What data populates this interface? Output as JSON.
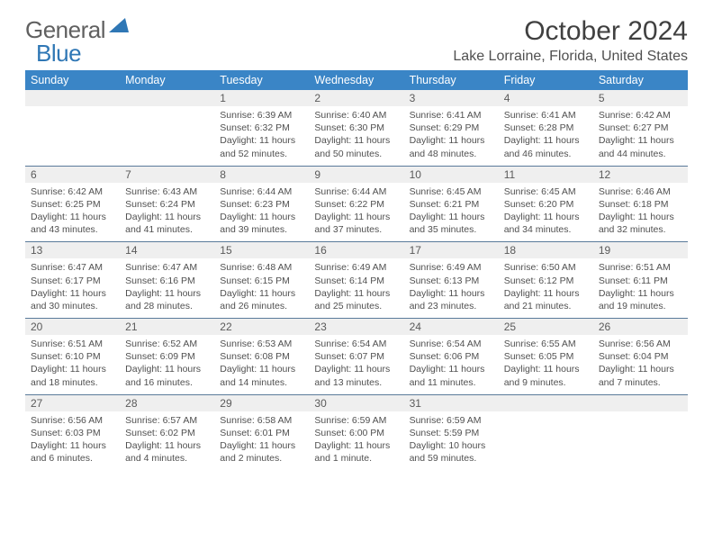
{
  "brand": {
    "text1": "General",
    "text2": "Blue"
  },
  "title": "October 2024",
  "location": "Lake Lorraine, Florida, United States",
  "colors": {
    "header_bg": "#3a85c6",
    "header_fg": "#ffffff",
    "daynum_bg": "#efefef",
    "row_sep": "#5a7a9a",
    "brand_gray": "#606060",
    "brand_blue": "#2f77b5",
    "text": "#505050"
  },
  "day_names": [
    "Sunday",
    "Monday",
    "Tuesday",
    "Wednesday",
    "Thursday",
    "Friday",
    "Saturday"
  ],
  "weeks": [
    {
      "nums": [
        "",
        "",
        "1",
        "2",
        "3",
        "4",
        "5"
      ],
      "cells": [
        "",
        "",
        "Sunrise: 6:39 AM\nSunset: 6:32 PM\nDaylight: 11 hours and 52 minutes.",
        "Sunrise: 6:40 AM\nSunset: 6:30 PM\nDaylight: 11 hours and 50 minutes.",
        "Sunrise: 6:41 AM\nSunset: 6:29 PM\nDaylight: 11 hours and 48 minutes.",
        "Sunrise: 6:41 AM\nSunset: 6:28 PM\nDaylight: 11 hours and 46 minutes.",
        "Sunrise: 6:42 AM\nSunset: 6:27 PM\nDaylight: 11 hours and 44 minutes."
      ]
    },
    {
      "nums": [
        "6",
        "7",
        "8",
        "9",
        "10",
        "11",
        "12"
      ],
      "cells": [
        "Sunrise: 6:42 AM\nSunset: 6:25 PM\nDaylight: 11 hours and 43 minutes.",
        "Sunrise: 6:43 AM\nSunset: 6:24 PM\nDaylight: 11 hours and 41 minutes.",
        "Sunrise: 6:44 AM\nSunset: 6:23 PM\nDaylight: 11 hours and 39 minutes.",
        "Sunrise: 6:44 AM\nSunset: 6:22 PM\nDaylight: 11 hours and 37 minutes.",
        "Sunrise: 6:45 AM\nSunset: 6:21 PM\nDaylight: 11 hours and 35 minutes.",
        "Sunrise: 6:45 AM\nSunset: 6:20 PM\nDaylight: 11 hours and 34 minutes.",
        "Sunrise: 6:46 AM\nSunset: 6:18 PM\nDaylight: 11 hours and 32 minutes."
      ]
    },
    {
      "nums": [
        "13",
        "14",
        "15",
        "16",
        "17",
        "18",
        "19"
      ],
      "cells": [
        "Sunrise: 6:47 AM\nSunset: 6:17 PM\nDaylight: 11 hours and 30 minutes.",
        "Sunrise: 6:47 AM\nSunset: 6:16 PM\nDaylight: 11 hours and 28 minutes.",
        "Sunrise: 6:48 AM\nSunset: 6:15 PM\nDaylight: 11 hours and 26 minutes.",
        "Sunrise: 6:49 AM\nSunset: 6:14 PM\nDaylight: 11 hours and 25 minutes.",
        "Sunrise: 6:49 AM\nSunset: 6:13 PM\nDaylight: 11 hours and 23 minutes.",
        "Sunrise: 6:50 AM\nSunset: 6:12 PM\nDaylight: 11 hours and 21 minutes.",
        "Sunrise: 6:51 AM\nSunset: 6:11 PM\nDaylight: 11 hours and 19 minutes."
      ]
    },
    {
      "nums": [
        "20",
        "21",
        "22",
        "23",
        "24",
        "25",
        "26"
      ],
      "cells": [
        "Sunrise: 6:51 AM\nSunset: 6:10 PM\nDaylight: 11 hours and 18 minutes.",
        "Sunrise: 6:52 AM\nSunset: 6:09 PM\nDaylight: 11 hours and 16 minutes.",
        "Sunrise: 6:53 AM\nSunset: 6:08 PM\nDaylight: 11 hours and 14 minutes.",
        "Sunrise: 6:54 AM\nSunset: 6:07 PM\nDaylight: 11 hours and 13 minutes.",
        "Sunrise: 6:54 AM\nSunset: 6:06 PM\nDaylight: 11 hours and 11 minutes.",
        "Sunrise: 6:55 AM\nSunset: 6:05 PM\nDaylight: 11 hours and 9 minutes.",
        "Sunrise: 6:56 AM\nSunset: 6:04 PM\nDaylight: 11 hours and 7 minutes."
      ]
    },
    {
      "nums": [
        "27",
        "28",
        "29",
        "30",
        "31",
        "",
        ""
      ],
      "cells": [
        "Sunrise: 6:56 AM\nSunset: 6:03 PM\nDaylight: 11 hours and 6 minutes.",
        "Sunrise: 6:57 AM\nSunset: 6:02 PM\nDaylight: 11 hours and 4 minutes.",
        "Sunrise: 6:58 AM\nSunset: 6:01 PM\nDaylight: 11 hours and 2 minutes.",
        "Sunrise: 6:59 AM\nSunset: 6:00 PM\nDaylight: 11 hours and 1 minute.",
        "Sunrise: 6:59 AM\nSunset: 5:59 PM\nDaylight: 10 hours and 59 minutes.",
        "",
        ""
      ]
    }
  ]
}
